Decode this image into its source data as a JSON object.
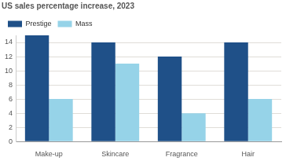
{
  "chart_data": {
    "type": "bar",
    "title": "US sales percentage increase, 2023",
    "categories": [
      "Make-up",
      "Skincare",
      "Fragrance",
      "Hair"
    ],
    "series": [
      {
        "name": "Prestige",
        "color": "#1f5088",
        "values": [
          15,
          14,
          12,
          14
        ]
      },
      {
        "name": "Mass",
        "color": "#96d3e8",
        "values": [
          6,
          11,
          4,
          6
        ]
      }
    ],
    "ylim": [
      0,
      15
    ],
    "yticks": [
      0,
      2,
      4,
      6,
      8,
      10,
      12,
      14
    ],
    "grid": true,
    "legend": "top-left"
  }
}
